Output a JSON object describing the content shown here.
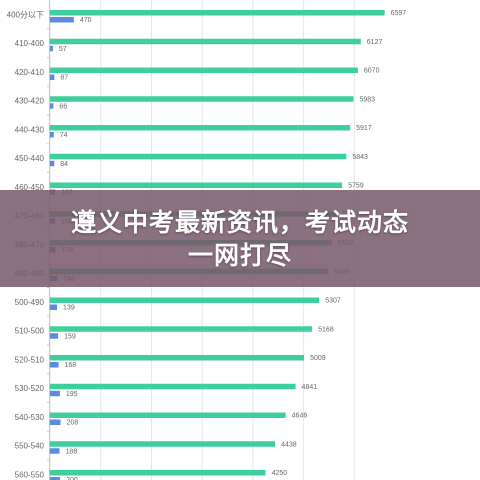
{
  "chart_data": {
    "type": "bar",
    "orientation": "horizontal",
    "categories": [
      "400分以下",
      "410-400",
      "420-410",
      "430-420",
      "440-430",
      "450-440",
      "460-450",
      "470-460",
      "480-470",
      "490-480",
      "500-490",
      "510-500",
      "520-510",
      "530-520",
      "540-530",
      "550-540",
      "560-550"
    ],
    "series": [
      {
        "color": "#3fcf9a",
        "values": [
          6597,
          6127,
          6070,
          5983,
          5917,
          5843,
          5759,
          5650,
          5553,
          5485,
          5307,
          5168,
          5009,
          4841,
          4646,
          4438,
          4250
        ]
      },
      {
        "color": "#5b8be0",
        "values": [
          470,
          57,
          87,
          66,
          74,
          84,
          103,
          100,
          108,
          146,
          139,
          159,
          168,
          195,
          208,
          188,
          200
        ]
      }
    ],
    "xlim": [
      0,
      6900
    ],
    "grid": true
  },
  "banner": {
    "line1": "遵义中考最新资讯，考试动态",
    "line2": "一网打尽"
  }
}
